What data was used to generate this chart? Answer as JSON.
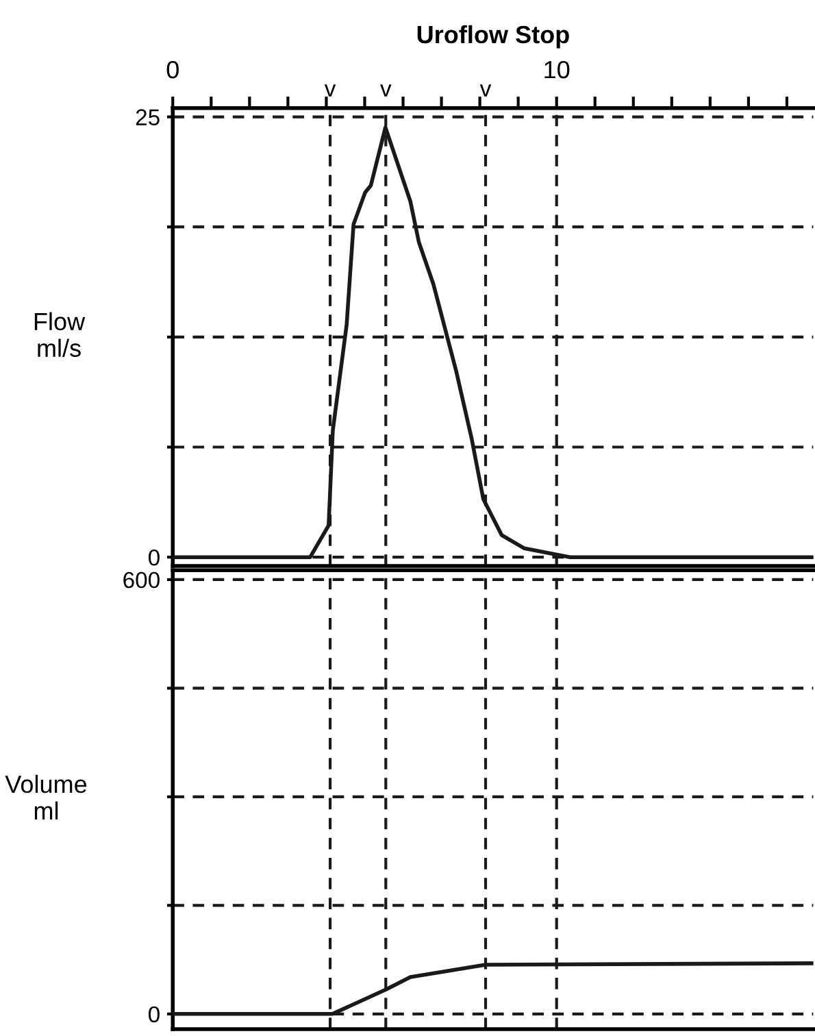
{
  "chart_data": [
    {
      "type": "line",
      "title": "Uroflow Stop",
      "ylabel": "Flow\nml/s",
      "x": [
        0,
        3.58,
        4.06,
        4.17,
        4.53,
        4.71,
        5.01,
        5.16,
        5.54,
        6.19,
        6.41,
        6.79,
        7.38,
        7.79,
        8.09,
        8.57,
        9.16,
        10.35,
        16.69
      ],
      "series": [
        {
          "color": "#1a1a1a",
          "values": [
            0,
            0,
            1.8,
            7.2,
            13.2,
            18.9,
            20.7,
            21.1,
            24.4,
            20.2,
            17.9,
            15.5,
            10.6,
            6.7,
            3.3,
            1.25,
            0.5,
            0,
            0
          ]
        }
      ],
      "xlim": [
        0,
        16.69
      ],
      "ylim": [
        -0.5,
        25.5
      ],
      "xticks": [
        0,
        {
          "value": 1,
          "label": null
        },
        {
          "value": 2,
          "label": null
        },
        {
          "value": 3,
          "label": null
        },
        {
          "value": 4,
          "label": null
        },
        {
          "value": 5,
          "label": null
        },
        {
          "value": 6,
          "label": null
        },
        {
          "value": 7,
          "label": null
        },
        {
          "value": 8,
          "label": null
        },
        {
          "value": 9,
          "label": null
        },
        10,
        {
          "value": 11,
          "label": null
        },
        {
          "value": 12,
          "label": null
        },
        {
          "value": 13,
          "label": null
        },
        {
          "value": 14,
          "label": null
        },
        {
          "value": 15,
          "label": null
        },
        {
          "value": 16,
          "label": null
        }
      ],
      "yticks": [
        0,
        {
          "value": 6.25,
          "label": null
        },
        {
          "value": 12.5,
          "label": null
        },
        {
          "value": 18.75,
          "label": null
        },
        25
      ],
      "grid": "y",
      "marker": "none",
      "line_style": "solid",
      "legend": false,
      "ref_lines": [
        {
          "axis": "x",
          "value": 4.1,
          "label": "v",
          "line_style": "dashed",
          "color": "#1a1a1a"
        },
        {
          "axis": "x",
          "value": 5.55,
          "label": "v",
          "line_style": "dashed",
          "color": "#1a1a1a"
        },
        {
          "axis": "x",
          "value": 8.15,
          "label": "v",
          "line_style": "dashed",
          "color": "#1a1a1a"
        },
        {
          "axis": "x",
          "value": 10,
          "line_style": "dashed",
          "color": "#1a1a1a"
        }
      ]
    },
    {
      "type": "line",
      "ylabel": "Volume\nml",
      "x": [
        0,
        4.16,
        5.56,
        6.19,
        8.15,
        16.69
      ],
      "series": [
        {
          "color": "#1a1a1a",
          "values": [
            0,
            0,
            34,
            51,
            68,
            70
          ]
        }
      ],
      "xlim": [
        0,
        16.69
      ],
      "ylim": [
        -21,
        613
      ],
      "yticks": [
        0,
        {
          "value": 150,
          "label": null
        },
        {
          "value": 300,
          "label": null
        },
        {
          "value": 450,
          "label": null
        },
        600
      ],
      "tick_labels": "y",
      "grid": "y",
      "marker": "none",
      "line_style": "solid",
      "legend": false,
      "ref_lines": [
        {
          "axis": "x",
          "value": 4.1,
          "line_style": "dashed",
          "color": "#1a1a1a"
        },
        {
          "axis": "x",
          "value": 5.55,
          "line_style": "dashed",
          "color": "#1a1a1a"
        },
        {
          "axis": "x",
          "value": 8.15,
          "line_style": "dashed",
          "color": "#1a1a1a"
        },
        {
          "axis": "x",
          "value": 10,
          "line_style": "dashed",
          "color": "#1a1a1a"
        }
      ]
    }
  ]
}
